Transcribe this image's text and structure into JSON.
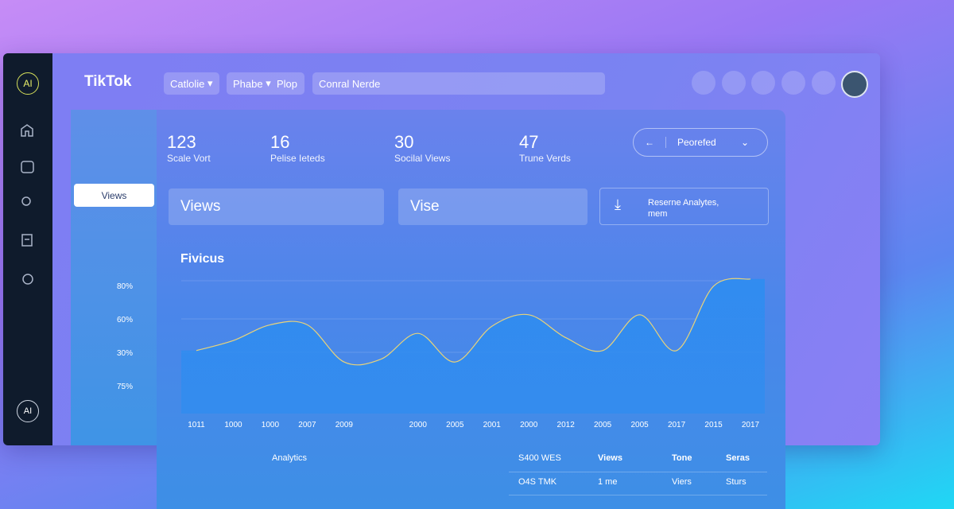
{
  "sidebar": {
    "logo": "AI",
    "footer_logo": "AI"
  },
  "header": {
    "brand": "TikTok",
    "dropdown_1": "Catlolie",
    "dropdown_2": "Phabe",
    "link": "Plop",
    "search": "Conral Nerde"
  },
  "stats": [
    {
      "value": 123,
      "label": "Scale Vort"
    },
    {
      "value": 16,
      "label": "Pelise Ieteds"
    },
    {
      "value": 30,
      "label": "Socilal Views"
    },
    {
      "value": 47,
      "label": "Trune Verds"
    }
  ],
  "period_select": "Peorefed",
  "side_tab": "Views",
  "cards": [
    "Views",
    "Vise"
  ],
  "report": {
    "title": "Reserne Analytes,",
    "subtitle": "mem"
  },
  "chart_data": {
    "type": "area",
    "title": "Fivicus",
    "y_labels": [
      "80%",
      "60%",
      "30%",
      "75%"
    ],
    "categories": [
      "1011",
      "1000",
      "1000",
      "2007",
      "2009",
      null,
      "2000",
      "2005",
      "2001",
      "2000",
      "2012",
      "2005",
      "2005",
      "2017",
      "2015",
      "2017"
    ],
    "values": [
      44,
      51,
      62,
      62,
      36,
      38,
      56,
      36,
      61,
      69,
      53,
      44,
      69,
      44,
      89,
      94
    ],
    "ylim": [
      0,
      100
    ],
    "color": "#2f8cf0",
    "line_color": "#e8d37a"
  },
  "footer": {
    "label": "Analytics"
  },
  "table": {
    "rows": [
      [
        "S400 WES",
        "Views",
        "Tone",
        "Seras"
      ],
      [
        "O4S TMK",
        "1 me",
        "Viers",
        "Sturs"
      ]
    ]
  }
}
